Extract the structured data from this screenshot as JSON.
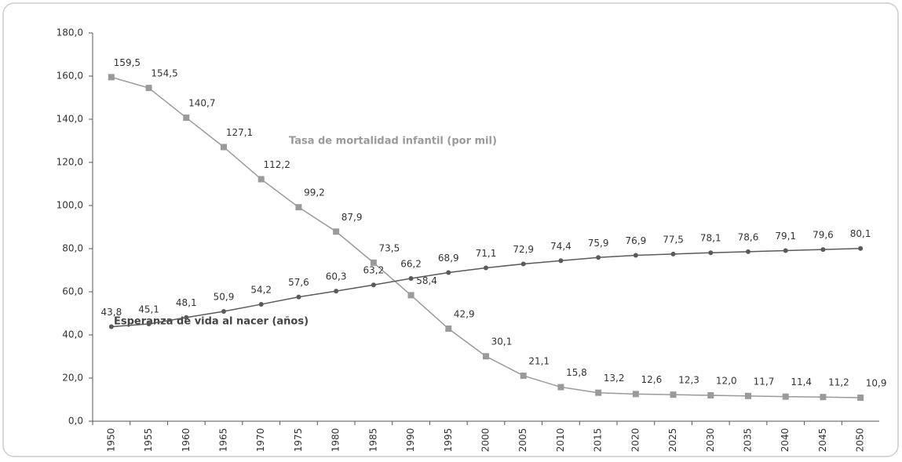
{
  "chart_data": {
    "type": "line",
    "categories": [
      "1950",
      "1955",
      "1960",
      "1965",
      "1970",
      "1975",
      "1980",
      "1985",
      "1990",
      "1995",
      "2000",
      "2005",
      "2010",
      "2015",
      "2020",
      "2025",
      "2030",
      "2035",
      "2040",
      "2045",
      "2050"
    ],
    "series": [
      {
        "name": "Tasa de mortalidad infantil (por mil)",
        "color": "#9a9a9a",
        "values": [
          159.5,
          154.5,
          140.7,
          127.1,
          112.2,
          99.2,
          87.9,
          73.5,
          58.4,
          42.9,
          30.1,
          21.1,
          15.8,
          13.2,
          12.6,
          12.3,
          12.0,
          11.7,
          11.4,
          11.2,
          10.9
        ],
        "value_labels": [
          "159,5",
          "154,5",
          "140,7",
          "127,1",
          "112,2",
          "99,2",
          "87,9",
          "73,5",
          "58,4",
          "42,9",
          "30,1",
          "21,1",
          "15,8",
          "13,2",
          "12,6",
          "12,3",
          "12,0",
          "11,7",
          "11,4",
          "11,2",
          "10,9"
        ]
      },
      {
        "name": "Esperanza de vida al nacer (años)",
        "color": "#5a5a5a",
        "values": [
          43.8,
          45.1,
          48.1,
          50.9,
          54.2,
          57.6,
          60.3,
          63.2,
          66.2,
          68.9,
          71.1,
          72.9,
          74.4,
          75.9,
          76.9,
          77.5,
          78.1,
          78.6,
          79.1,
          79.6,
          80.1
        ],
        "value_labels": [
          "43,8",
          "45,1",
          "48,1",
          "50,9",
          "54,2",
          "57,6",
          "60,3",
          "63,2",
          "66,2",
          "68,9",
          "71,1",
          "72,9",
          "74,4",
          "75,9",
          "76,9",
          "77,5",
          "78,1",
          "78,6",
          "79,1",
          "79,6",
          "80,1"
        ]
      }
    ],
    "ylim": [
      0,
      180
    ],
    "yticks": [
      {
        "value": 0,
        "label": "0,0"
      },
      {
        "value": 20,
        "label": "20,0"
      },
      {
        "value": 40,
        "label": "40,0"
      },
      {
        "value": 60,
        "label": "60,0"
      },
      {
        "value": 80,
        "label": "80,0"
      },
      {
        "value": 100,
        "label": "100,0"
      },
      {
        "value": 120,
        "label": "120,0"
      },
      {
        "value": 140,
        "label": "140,0"
      },
      {
        "value": 160,
        "label": "160,0"
      },
      {
        "value": 180,
        "label": "180,0"
      }
    ],
    "grid": false
  }
}
